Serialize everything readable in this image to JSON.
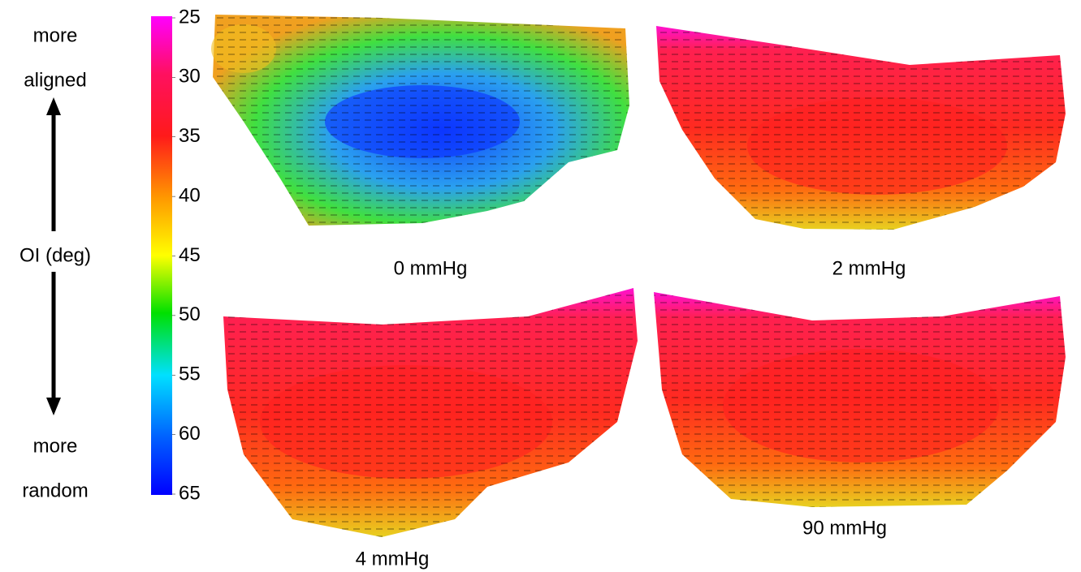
{
  "left_labels": {
    "top": [
      "more",
      "aligned"
    ],
    "middle": "OI (deg)",
    "bottom": [
      "more",
      "random"
    ]
  },
  "colorbar": {
    "lim": [
      25,
      65
    ],
    "ticks": [
      25,
      30,
      35,
      40,
      45,
      50,
      55,
      60,
      65
    ]
  },
  "panels": [
    {
      "label": "0 mmHg"
    },
    {
      "label": "2 mmHg"
    },
    {
      "label": "4 mmHg"
    },
    {
      "label": "90 mmHg"
    }
  ]
}
